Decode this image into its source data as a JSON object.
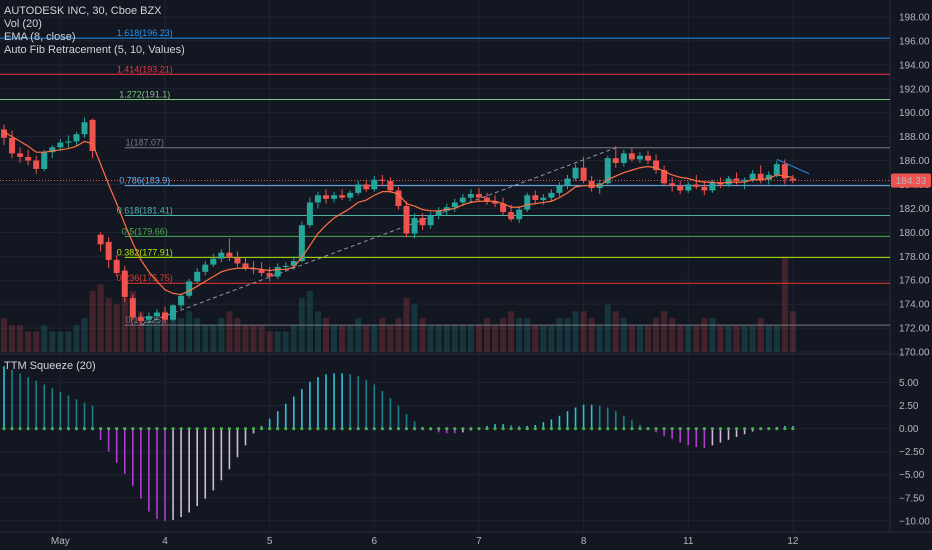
{
  "legend": {
    "symbol": "AUTODESK INC, 30, Cboe BZX",
    "vol": "Vol (20)",
    "ema": "EMA (8, close)",
    "fib": "Auto Fib Retracement (5, 10, Values)",
    "squeeze": "TTM Squeeze (20)"
  },
  "last_price": {
    "label": "184.33",
    "value": 184.33,
    "color": "#ef5350"
  },
  "colors": {
    "bg": "#131722",
    "up": "#26a69a",
    "down": "#ef5350",
    "ema": "#ff7043",
    "grid": "#1f2430",
    "axis_text": "#b2b5be"
  },
  "chart_data": [
    {
      "type": "candlestick",
      "title": "AUTODESK INC, 30, Cboe BZX",
      "ylim": [
        170,
        199
      ],
      "y_ticks": [
        170,
        172,
        174,
        176,
        178,
        180,
        182,
        184,
        186,
        188,
        190,
        192,
        194,
        196,
        198
      ],
      "x_ticks": [
        {
          "label": "May",
          "index": 7
        },
        {
          "label": "4",
          "index": 20
        },
        {
          "label": "5",
          "index": 33
        },
        {
          "label": "6",
          "index": 46
        },
        {
          "label": "7",
          "index": 59
        },
        {
          "label": "8",
          "index": 72
        },
        {
          "label": "11",
          "index": 85
        },
        {
          "label": "12",
          "index": 98
        }
      ],
      "fib_levels": [
        {
          "ratio": "1.618",
          "value": 196.23,
          "label": "1.618(196.23)",
          "color": "#2196f3"
        },
        {
          "ratio": "1.414",
          "value": 193.21,
          "label": "1.414(193.21)",
          "color": "#f23645"
        },
        {
          "ratio": "1.272",
          "value": 191.1,
          "label": "1.272(191.1)",
          "color": "#81c784"
        },
        {
          "ratio": "1",
          "value": 187.07,
          "label": "1(187.07)",
          "color": "#787b86"
        },
        {
          "ratio": "0.786",
          "value": 183.9,
          "label": "0.786(183.9)",
          "color": "#64b5f6"
        },
        {
          "ratio": "0.618",
          "value": 181.41,
          "label": "0.618(181.41)",
          "color": "#4db6ac"
        },
        {
          "ratio": "0.5",
          "value": 179.66,
          "label": "0.5(179.66)",
          "color": "#4caf50"
        },
        {
          "ratio": "0.382",
          "value": 177.91,
          "label": "0.382(177.91)",
          "color": "#aeea00"
        },
        {
          "ratio": "0.236",
          "value": 175.75,
          "label": "0.236(175.75)",
          "color": "#e53935"
        },
        {
          "ratio": "0",
          "value": 172.25,
          "label": "0(172.25)",
          "color": "#787b86"
        }
      ],
      "ohlc": [
        [
          188.6,
          189.0,
          187.3,
          187.9
        ],
        [
          187.9,
          188.5,
          186.2,
          186.6
        ],
        [
          186.6,
          187.1,
          185.8,
          186.3
        ],
        [
          186.3,
          186.9,
          185.6,
          186.0
        ],
        [
          186.0,
          186.4,
          184.9,
          185.3
        ],
        [
          185.3,
          186.9,
          185.1,
          186.7
        ],
        [
          186.7,
          187.3,
          186.2,
          187.1
        ],
        [
          187.1,
          187.8,
          186.8,
          187.5
        ],
        [
          187.5,
          188.1,
          187.0,
          187.6
        ],
        [
          187.6,
          188.4,
          187.2,
          188.2
        ],
        [
          188.2,
          189.6,
          187.9,
          189.2
        ],
        [
          189.4,
          189.5,
          186.2,
          186.8
        ],
        [
          179.8,
          180.0,
          178.4,
          179.0
        ],
        [
          179.2,
          179.6,
          177.0,
          177.7
        ],
        [
          177.7,
          178.1,
          176.3,
          176.6
        ],
        [
          176.8,
          177.2,
          174.2,
          174.6
        ],
        [
          174.5,
          174.8,
          172.7,
          172.9
        ],
        [
          172.9,
          173.3,
          172.3,
          172.6
        ],
        [
          172.7,
          173.3,
          172.5,
          173.0
        ],
        [
          173.0,
          173.6,
          172.8,
          173.3
        ],
        [
          173.3,
          173.8,
          172.4,
          172.7
        ],
        [
          172.7,
          174.0,
          172.6,
          173.9
        ],
        [
          173.9,
          174.9,
          173.6,
          174.7
        ],
        [
          174.7,
          176.1,
          174.5,
          175.9
        ],
        [
          175.9,
          177.0,
          175.7,
          176.7
        ],
        [
          176.7,
          177.6,
          176.4,
          177.3
        ],
        [
          177.3,
          178.2,
          177.1,
          177.8
        ],
        [
          177.8,
          178.6,
          177.5,
          178.3
        ],
        [
          178.3,
          179.5,
          177.6,
          177.9
        ],
        [
          177.9,
          178.4,
          177.1,
          177.4
        ],
        [
          177.4,
          177.9,
          176.8,
          177.0
        ],
        [
          177.0,
          177.6,
          176.5,
          176.9
        ],
        [
          176.9,
          177.5,
          176.3,
          176.6
        ],
        [
          176.6,
          177.1,
          175.9,
          176.3
        ],
        [
          176.3,
          177.4,
          176.1,
          177.1
        ],
        [
          177.1,
          177.5,
          176.7,
          177.2
        ],
        [
          177.2,
          178.0,
          176.9,
          177.6
        ],
        [
          177.6,
          180.9,
          177.5,
          180.6
        ],
        [
          180.6,
          182.9,
          180.4,
          182.5
        ],
        [
          182.5,
          183.4,
          182.0,
          183.1
        ],
        [
          183.1,
          183.6,
          182.4,
          182.8
        ],
        [
          182.8,
          183.4,
          182.5,
          183.1
        ],
        [
          183.1,
          183.6,
          182.7,
          182.9
        ],
        [
          182.9,
          183.5,
          182.6,
          183.3
        ],
        [
          183.3,
          184.3,
          183.1,
          184.0
        ],
        [
          184.0,
          184.4,
          183.4,
          183.6
        ],
        [
          183.6,
          184.7,
          183.4,
          184.4
        ],
        [
          184.4,
          184.8,
          183.9,
          184.3
        ],
        [
          184.3,
          184.6,
          183.3,
          183.5
        ],
        [
          183.5,
          183.8,
          181.9,
          182.2
        ],
        [
          182.2,
          182.6,
          179.6,
          179.9
        ],
        [
          179.9,
          181.6,
          179.5,
          181.2
        ],
        [
          181.2,
          181.6,
          180.2,
          180.6
        ],
        [
          180.6,
          181.7,
          180.3,
          181.4
        ],
        [
          181.4,
          182.1,
          181.1,
          181.8
        ],
        [
          181.8,
          182.4,
          181.4,
          182.1
        ],
        [
          182.1,
          182.8,
          181.7,
          182.5
        ],
        [
          182.5,
          183.2,
          182.2,
          182.9
        ],
        [
          182.9,
          183.6,
          182.5,
          183.2
        ],
        [
          183.2,
          183.7,
          182.6,
          182.9
        ],
        [
          182.9,
          183.3,
          182.3,
          182.6
        ],
        [
          182.6,
          183.1,
          182.1,
          182.4
        ],
        [
          182.4,
          182.9,
          181.4,
          181.7
        ],
        [
          181.7,
          182.3,
          180.9,
          181.1
        ],
        [
          181.1,
          182.2,
          180.8,
          181.9
        ],
        [
          181.9,
          183.3,
          181.7,
          183.1
        ],
        [
          183.1,
          183.5,
          182.4,
          182.7
        ],
        [
          182.7,
          183.2,
          182.3,
          182.9
        ],
        [
          182.9,
          183.6,
          182.6,
          183.3
        ],
        [
          183.3,
          184.2,
          183.0,
          183.9
        ],
        [
          183.9,
          184.8,
          183.6,
          184.5
        ],
        [
          184.5,
          185.7,
          184.3,
          185.4
        ],
        [
          185.4,
          186.3,
          184.1,
          184.3
        ],
        [
          184.3,
          184.7,
          183.4,
          183.7
        ],
        [
          183.7,
          184.4,
          183.2,
          184.1
        ],
        [
          184.1,
          186.4,
          184.0,
          186.2
        ],
        [
          186.2,
          187.2,
          185.4,
          185.8
        ],
        [
          185.8,
          186.9,
          185.5,
          186.6
        ],
        [
          186.6,
          187.1,
          185.9,
          186.1
        ],
        [
          186.1,
          186.7,
          185.8,
          186.4
        ],
        [
          186.4,
          186.8,
          185.7,
          186.0
        ],
        [
          186.0,
          186.5,
          184.9,
          185.2
        ],
        [
          185.2,
          185.6,
          183.9,
          184.1
        ],
        [
          184.1,
          184.6,
          183.4,
          183.9
        ],
        [
          183.9,
          184.3,
          183.2,
          183.5
        ],
        [
          183.5,
          184.2,
          183.3,
          184.0
        ],
        [
          184.0,
          184.8,
          183.6,
          183.8
        ],
        [
          183.8,
          184.3,
          183.1,
          183.5
        ],
        [
          183.5,
          184.4,
          183.3,
          184.2
        ],
        [
          184.2,
          184.6,
          183.7,
          184.0
        ],
        [
          184.0,
          184.7,
          183.8,
          184.5
        ],
        [
          184.5,
          185.0,
          184.0,
          184.3
        ],
        [
          184.3,
          184.6,
          183.6,
          184.4
        ],
        [
          184.4,
          185.2,
          184.2,
          184.9
        ],
        [
          184.9,
          185.6,
          184.1,
          184.4
        ],
        [
          184.4,
          185.1,
          184.0,
          184.8
        ],
        [
          184.8,
          186.0,
          184.6,
          185.7
        ],
        [
          185.7,
          186.1,
          184.0,
          184.5
        ],
        [
          184.5,
          184.8,
          184.1,
          184.33
        ]
      ],
      "volume": [
        5,
        4,
        4,
        3,
        3,
        4,
        3,
        3,
        3,
        4,
        5,
        9,
        10,
        8,
        7,
        8,
        9,
        6,
        5,
        5,
        6,
        5,
        5,
        6,
        5,
        4,
        4,
        5,
        6,
        5,
        4,
        4,
        4,
        3,
        3,
        3,
        4,
        8,
        9,
        6,
        5,
        4,
        4,
        4,
        5,
        4,
        4,
        5,
        4,
        5,
        8,
        7,
        5,
        4,
        4,
        4,
        4,
        4,
        4,
        4,
        5,
        4,
        5,
        6,
        5,
        5,
        4,
        4,
        4,
        5,
        5,
        6,
        6,
        5,
        4,
        7,
        6,
        5,
        4,
        4,
        4,
        5,
        6,
        5,
        4,
        4,
        4,
        5,
        5,
        4,
        4,
        4,
        4,
        4,
        5,
        4,
        4,
        14,
        6
      ],
      "ema": [
        188.4,
        188.0,
        187.6,
        187.2,
        186.7,
        186.7,
        186.8,
        186.9,
        187.0,
        187.2,
        187.6,
        187.4,
        185.7,
        184.0,
        182.4,
        180.7,
        179.1,
        177.7,
        176.7,
        175.9,
        175.2,
        174.9,
        174.8,
        175.1,
        175.5,
        175.9,
        176.3,
        176.7,
        176.9,
        177.0,
        177.0,
        177.0,
        176.9,
        176.8,
        176.9,
        176.9,
        177.1,
        177.9,
        178.9,
        179.9,
        180.6,
        181.2,
        181.6,
        182.0,
        182.5,
        182.7,
        183.1,
        183.4,
        183.4,
        183.2,
        182.4,
        182.2,
        181.9,
        181.8,
        181.8,
        181.9,
        182.0,
        182.3,
        182.5,
        182.6,
        182.6,
        182.6,
        182.4,
        182.1,
        182.1,
        182.3,
        182.4,
        182.5,
        182.6,
        182.9,
        183.3,
        183.8,
        183.9,
        183.9,
        183.9,
        184.4,
        184.7,
        185.0,
        185.2,
        185.4,
        185.5,
        185.4,
        185.1,
        184.8,
        184.6,
        184.5,
        184.3,
        184.2,
        184.2,
        184.1,
        184.2,
        184.2,
        184.2,
        184.4,
        184.4,
        184.5,
        184.8,
        184.7,
        184.6
      ],
      "squeeze": {
        "ylim": [
          -11,
          8
        ],
        "y_ticks": [
          5.0,
          2.5,
          0.0,
          -2.5,
          -5.0,
          -7.5,
          -10.0
        ],
        "y_tick_labels": [
          "5.00",
          "2.50",
          "0.00",
          "−2.50",
          "−5.00",
          "−7.50",
          "−10.00"
        ],
        "values": [
          6.8,
          6.4,
          6.0,
          5.6,
          5.2,
          4.8,
          4.4,
          4.0,
          3.6,
          3.2,
          2.8,
          2.5,
          -1.2,
          -2.5,
          -3.7,
          -4.9,
          -6.2,
          -7.6,
          -9.0,
          -9.8,
          -10.0,
          -9.9,
          -9.6,
          -9.1,
          -8.4,
          -7.6,
          -6.7,
          -5.6,
          -4.4,
          -3.1,
          -1.8,
          -0.5,
          0.3,
          1.1,
          1.9,
          2.7,
          3.5,
          4.3,
          5.1,
          5.6,
          5.9,
          6.0,
          6.0,
          5.9,
          5.7,
          5.3,
          4.8,
          4.1,
          3.3,
          2.5,
          1.6,
          0.8,
          0.2,
          -0.2,
          -0.4,
          -0.5,
          -0.5,
          -0.4,
          -0.2,
          0.0,
          0.3,
          0.5,
          0.5,
          0.4,
          0.3,
          0.3,
          0.4,
          0.7,
          1.0,
          1.4,
          1.9,
          2.3,
          2.6,
          2.6,
          2.5,
          2.3,
          1.9,
          1.4,
          0.9,
          0.4,
          0.0,
          -0.4,
          -0.8,
          -1.1,
          -1.5,
          -1.8,
          -2.0,
          -2.1,
          -1.8,
          -1.5,
          -1.2,
          -0.9,
          -0.6,
          -0.3,
          -0.1,
          0.1,
          0.2,
          0.3,
          0.3
        ]
      }
    }
  ]
}
